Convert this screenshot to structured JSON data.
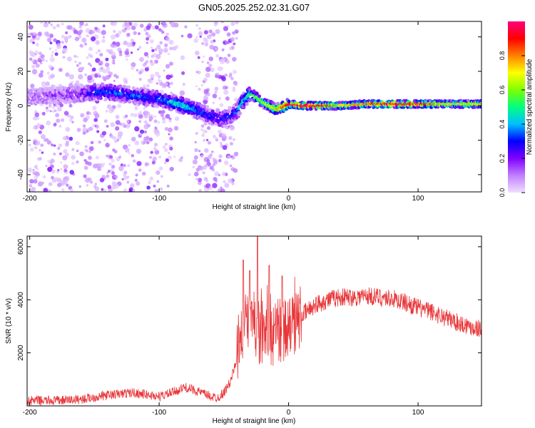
{
  "figure": {
    "title": "GN05.2025.252.02.31.G07"
  },
  "chart_data": [
    {
      "type": "heatmap",
      "title": "GN05.2025.252.02.31.G07",
      "xlabel": "Height of straight line (km)",
      "ylabel": "Frequency (Hz)",
      "xlim": [
        -202,
        149
      ],
      "ylim": [
        -50,
        49
      ],
      "xticks": [
        -200,
        -100,
        0,
        100
      ],
      "yticks": [
        -40,
        -20,
        0,
        20,
        40
      ],
      "grid": false,
      "colorbar": {
        "label": "Normalized spectral amplitude",
        "range": [
          0,
          1
        ],
        "ticks": [
          0.0,
          0.2,
          0.4,
          0.6,
          0.8
        ],
        "colormap": [
          "#f0e0ff",
          "#c080ff",
          "#8000ff",
          "#0000ff",
          "#00c0ff",
          "#00ff80",
          "#80ff00",
          "#ffff00",
          "#ff8000",
          "#ff0000",
          "#ff0080"
        ]
      },
      "ridge": {
        "description_free": true,
        "x": [
          -200,
          -180,
          -160,
          -150,
          -140,
          -120,
          -100,
          -90,
          -80,
          -70,
          -60,
          -50,
          -40,
          -35,
          -30,
          -25,
          -20,
          -15,
          -10,
          -5,
          0,
          10,
          20,
          40,
          60,
          80,
          100,
          120,
          149
        ],
        "frequency": [
          5,
          6,
          7,
          8,
          8,
          6,
          4,
          2,
          0,
          -3,
          -6,
          -8,
          -3,
          3,
          7,
          5,
          2,
          0,
          -2,
          -1,
          1,
          0,
          0,
          0,
          1,
          1,
          1,
          1,
          1
        ],
        "amplitude": [
          0.1,
          0.15,
          0.2,
          0.35,
          0.35,
          0.35,
          0.35,
          0.45,
          0.45,
          0.35,
          0.3,
          0.3,
          0.35,
          0.45,
          0.5,
          0.55,
          0.6,
          0.65,
          0.7,
          0.8,
          0.9,
          0.95,
          0.95,
          0.7,
          0.8,
          0.95,
          0.9,
          0.7,
          0.7
        ]
      }
    },
    {
      "type": "line",
      "xlabel": "Height of straight line (km)",
      "ylabel": "SNR (10 * v/v)",
      "xlim": [
        -202,
        149
      ],
      "ylim": [
        0,
        6400
      ],
      "xticks": [
        -200,
        -100,
        0,
        100
      ],
      "yticks": [
        2000,
        4000,
        6000
      ],
      "grid": false,
      "color": "#e8373a",
      "envelope": {
        "x": [
          -202,
          -180,
          -160,
          -140,
          -120,
          -100,
          -90,
          -80,
          -70,
          -60,
          -55,
          -50,
          -45,
          -40,
          -35,
          -30,
          -25,
          -20,
          -15,
          -10,
          -5,
          0,
          10,
          20,
          30,
          40,
          50,
          60,
          70,
          80,
          90,
          100,
          110,
          120,
          130,
          140,
          149
        ],
        "y": [
          200,
          200,
          250,
          400,
          500,
          350,
          500,
          700,
          550,
          350,
          300,
          500,
          900,
          1800,
          2800,
          3500,
          3000,
          2500,
          2600,
          2700,
          2800,
          2900,
          3400,
          3800,
          4000,
          4100,
          4100,
          4150,
          4100,
          4050,
          3900,
          3700,
          3550,
          3350,
          3150,
          3000,
          2900
        ]
      },
      "peaks": [
        {
          "x": -35,
          "y": 5500
        },
        {
          "x": -30,
          "y": 5100
        },
        {
          "x": -24,
          "y": 6400
        },
        {
          "x": -15,
          "y": 5300
        },
        {
          "x": -5,
          "y": 4900
        }
      ]
    }
  ]
}
